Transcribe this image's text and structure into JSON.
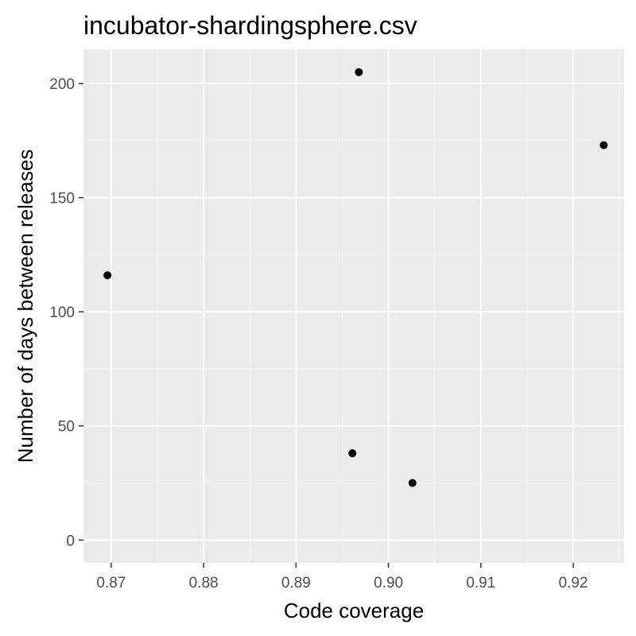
{
  "chart_data": {
    "type": "scatter",
    "title": "incubator-shardingsphere.csv",
    "xlabel": "Code coverage",
    "ylabel": "Number of days between releases",
    "xlim": [
      0.867,
      0.9255
    ],
    "ylim": [
      -10,
      215
    ],
    "x_ticks": [
      0.87,
      0.88,
      0.89,
      0.9,
      0.91,
      0.92
    ],
    "x_tick_labels": [
      "0.87",
      "0.88",
      "0.89",
      "0.90",
      "0.91",
      "0.92"
    ],
    "y_ticks": [
      0,
      50,
      100,
      150,
      200
    ],
    "y_tick_labels": [
      "0",
      "50",
      "100",
      "150",
      "200"
    ],
    "grid": true,
    "points": [
      {
        "x": 0.8696,
        "y": 116
      },
      {
        "x": 0.8961,
        "y": 38
      },
      {
        "x": 0.8968,
        "y": 205
      },
      {
        "x": 0.9026,
        "y": 25
      },
      {
        "x": 0.9233,
        "y": 173
      }
    ],
    "colors": {
      "panel": "#ebebeb",
      "grid_major": "#ffffff",
      "point": "#000000",
      "tick_text": "#4d4d4d"
    }
  }
}
